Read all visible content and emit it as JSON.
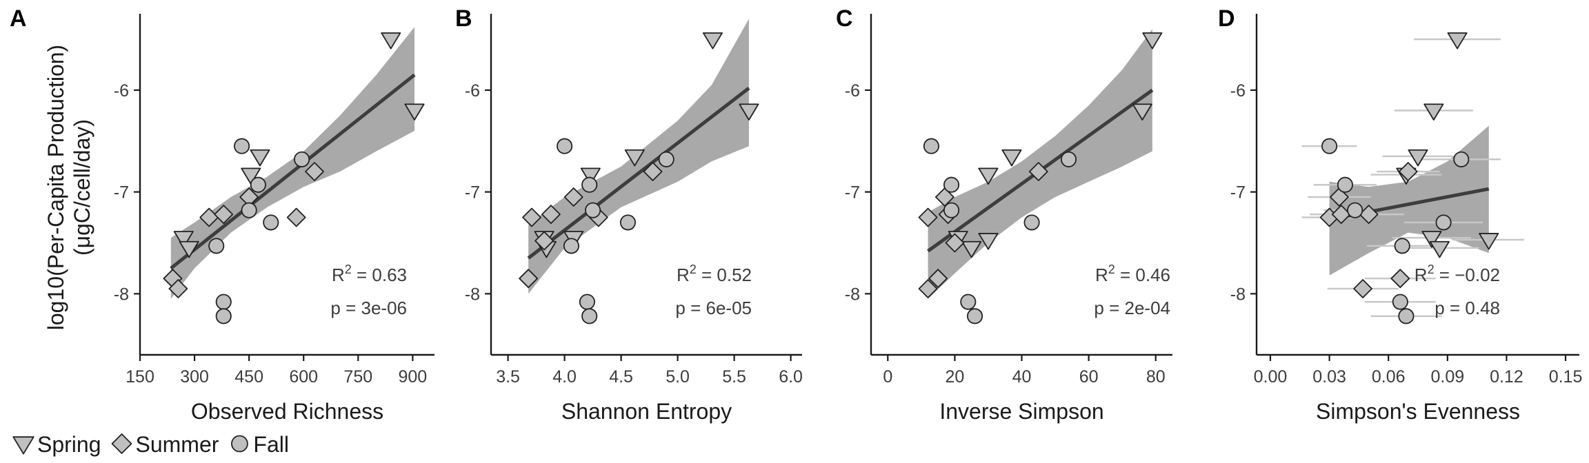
{
  "ylabel_line1": "log10(Per-Capita Production)",
  "ylabel_line2": "(μgC/cell/day)",
  "legend": [
    {
      "label": "Spring",
      "shape": "triangle-down"
    },
    {
      "label": "Summer",
      "shape": "diamond"
    },
    {
      "label": "Fall",
      "shape": "circle"
    }
  ],
  "colors": {
    "marker_fill": "#bfbfbf",
    "marker_stroke": "#222222",
    "line": "#3d3d3d",
    "ribbon": "#a9a9a9",
    "errorbar": "#c8c8c8"
  },
  "chart_data": [
    {
      "type": "scatter",
      "label": "A",
      "xlabel": "Observed Richness",
      "xlim": [
        150,
        960
      ],
      "ylim": [
        -8.6,
        -5.25
      ],
      "xticks": [
        150,
        300,
        450,
        600,
        750,
        900
      ],
      "xticklabels": [
        "150",
        "300",
        "450",
        "600",
        "750",
        "900"
      ],
      "yticks": [
        -8,
        -7,
        -6
      ],
      "yticklabels": [
        "-8",
        "-7",
        "-6"
      ],
      "stat_r2_value": "0.63",
      "stat_p": "p = 3e-06",
      "fit": {
        "x": [
          235,
          905
        ],
        "y": [
          -7.75,
          -5.85
        ]
      },
      "ribbon": {
        "x": [
          235,
          300,
          400,
          500,
          600,
          700,
          800,
          905
        ],
        "upper": [
          -7.45,
          -7.3,
          -7.05,
          -6.85,
          -6.6,
          -6.25,
          -5.85,
          -5.38
        ],
        "lower": [
          -8.05,
          -7.75,
          -7.4,
          -7.15,
          -6.95,
          -6.8,
          -6.6,
          -6.4
        ]
      },
      "points": [
        {
          "x": 840,
          "y": -5.5,
          "season": "Spring"
        },
        {
          "x": 905,
          "y": -6.2,
          "season": "Spring"
        },
        {
          "x": 480,
          "y": -6.65,
          "season": "Spring"
        },
        {
          "x": 455,
          "y": -6.83,
          "season": "Spring"
        },
        {
          "x": 270,
          "y": -7.45,
          "season": "Spring"
        },
        {
          "x": 285,
          "y": -7.55,
          "season": "Spring"
        },
        {
          "x": 630,
          "y": -6.8,
          "season": "Summer"
        },
        {
          "x": 450,
          "y": -7.05,
          "season": "Summer"
        },
        {
          "x": 340,
          "y": -7.25,
          "season": "Summer"
        },
        {
          "x": 380,
          "y": -7.22,
          "season": "Summer"
        },
        {
          "x": 580,
          "y": -7.25,
          "season": "Summer"
        },
        {
          "x": 240,
          "y": -7.85,
          "season": "Summer"
        },
        {
          "x": 255,
          "y": -7.95,
          "season": "Summer"
        },
        {
          "x": 430,
          "y": -6.55,
          "season": "Fall"
        },
        {
          "x": 595,
          "y": -6.68,
          "season": "Fall"
        },
        {
          "x": 475,
          "y": -6.93,
          "season": "Fall"
        },
        {
          "x": 450,
          "y": -7.18,
          "season": "Fall"
        },
        {
          "x": 510,
          "y": -7.3,
          "season": "Fall"
        },
        {
          "x": 360,
          "y": -7.53,
          "season": "Fall"
        },
        {
          "x": 380,
          "y": -8.08,
          "season": "Fall"
        },
        {
          "x": 380,
          "y": -8.22,
          "season": "Fall"
        }
      ]
    },
    {
      "type": "scatter",
      "label": "B",
      "xlabel": "Shannon Entropy",
      "xlim": [
        3.35,
        6.1
      ],
      "ylim": [
        -8.6,
        -5.25
      ],
      "xticks": [
        3.5,
        4.0,
        4.5,
        5.0,
        5.5,
        6.0
      ],
      "xticklabels": [
        "3.5",
        "4.0",
        "4.5",
        "5.0",
        "5.5",
        "6.0"
      ],
      "yticks": [
        -8,
        -7,
        -6
      ],
      "yticklabels": [
        "-8",
        "-7",
        "-6"
      ],
      "stat_r2_value": "0.52",
      "stat_p": "p = 6e-05",
      "fit": {
        "x": [
          3.68,
          5.63
        ],
        "y": [
          -7.65,
          -5.98
        ]
      },
      "ribbon": {
        "x": [
          3.68,
          4.0,
          4.5,
          5.0,
          5.3,
          5.63
        ],
        "upper": [
          -7.32,
          -7.05,
          -6.75,
          -6.3,
          -5.95,
          -5.3
        ],
        "lower": [
          -8.0,
          -7.55,
          -7.15,
          -6.9,
          -6.7,
          -6.55
        ]
      },
      "points": [
        {
          "x": 5.31,
          "y": -5.5,
          "season": "Spring"
        },
        {
          "x": 5.63,
          "y": -6.2,
          "season": "Spring"
        },
        {
          "x": 4.62,
          "y": -6.65,
          "season": "Spring"
        },
        {
          "x": 4.23,
          "y": -6.83,
          "season": "Spring"
        },
        {
          "x": 3.82,
          "y": -7.45,
          "season": "Spring"
        },
        {
          "x": 3.84,
          "y": -7.55,
          "season": "Spring"
        },
        {
          "x": 4.08,
          "y": -7.45,
          "season": "Spring"
        },
        {
          "x": 4.78,
          "y": -6.8,
          "season": "Summer"
        },
        {
          "x": 4.08,
          "y": -7.05,
          "season": "Summer"
        },
        {
          "x": 3.71,
          "y": -7.25,
          "season": "Summer"
        },
        {
          "x": 3.88,
          "y": -7.22,
          "season": "Summer"
        },
        {
          "x": 4.3,
          "y": -7.25,
          "season": "Summer"
        },
        {
          "x": 3.68,
          "y": -7.85,
          "season": "Summer"
        },
        {
          "x": 3.82,
          "y": -7.48,
          "season": "Summer"
        },
        {
          "x": 4.0,
          "y": -6.55,
          "season": "Fall"
        },
        {
          "x": 4.9,
          "y": -6.68,
          "season": "Fall"
        },
        {
          "x": 4.22,
          "y": -6.93,
          "season": "Fall"
        },
        {
          "x": 4.25,
          "y": -7.18,
          "season": "Fall"
        },
        {
          "x": 4.56,
          "y": -7.3,
          "season": "Fall"
        },
        {
          "x": 4.06,
          "y": -7.53,
          "season": "Fall"
        },
        {
          "x": 4.2,
          "y": -8.08,
          "season": "Fall"
        },
        {
          "x": 4.22,
          "y": -8.22,
          "season": "Fall"
        }
      ]
    },
    {
      "type": "scatter",
      "label": "C",
      "xlabel": "Inverse Simpson",
      "xlim": [
        -5,
        85
      ],
      "ylim": [
        -8.6,
        -5.25
      ],
      "xticks": [
        0,
        20,
        40,
        60,
        80
      ],
      "xticklabels": [
        "0",
        "20",
        "40",
        "60",
        "80"
      ],
      "yticks": [
        -8,
        -7,
        -6
      ],
      "yticklabels": [
        "-8",
        "-7",
        "-6"
      ],
      "stat_r2_value": "0.46",
      "stat_p": "p = 2e-04",
      "fit": {
        "x": [
          12,
          79
        ],
        "y": [
          -7.58,
          -6.0
        ]
      },
      "ribbon": {
        "x": [
          12,
          20,
          30,
          40,
          50,
          60,
          70,
          79
        ],
        "upper": [
          -7.2,
          -7.05,
          -6.9,
          -6.7,
          -6.45,
          -6.15,
          -5.8,
          -5.4
        ],
        "lower": [
          -8.05,
          -7.8,
          -7.5,
          -7.25,
          -7.05,
          -6.9,
          -6.75,
          -6.6
        ]
      },
      "points": [
        {
          "x": 79,
          "y": -5.5,
          "season": "Spring"
        },
        {
          "x": 76,
          "y": -6.2,
          "season": "Spring"
        },
        {
          "x": 37,
          "y": -6.65,
          "season": "Spring"
        },
        {
          "x": 30,
          "y": -6.83,
          "season": "Spring"
        },
        {
          "x": 30,
          "y": -7.47,
          "season": "Spring"
        },
        {
          "x": 21,
          "y": -7.45,
          "season": "Spring"
        },
        {
          "x": 25,
          "y": -7.55,
          "season": "Spring"
        },
        {
          "x": 45,
          "y": -6.8,
          "season": "Summer"
        },
        {
          "x": 17,
          "y": -7.05,
          "season": "Summer"
        },
        {
          "x": 12,
          "y": -7.25,
          "season": "Summer"
        },
        {
          "x": 18,
          "y": -7.22,
          "season": "Summer"
        },
        {
          "x": 20,
          "y": -7.5,
          "season": "Summer"
        },
        {
          "x": 15,
          "y": -7.85,
          "season": "Summer"
        },
        {
          "x": 12,
          "y": -7.95,
          "season": "Summer"
        },
        {
          "x": 13,
          "y": -6.55,
          "season": "Fall"
        },
        {
          "x": 54,
          "y": -6.68,
          "season": "Fall"
        },
        {
          "x": 19,
          "y": -6.93,
          "season": "Fall"
        },
        {
          "x": 19,
          "y": -7.18,
          "season": "Fall"
        },
        {
          "x": 43,
          "y": -7.3,
          "season": "Fall"
        },
        {
          "x": 24,
          "y": -8.08,
          "season": "Fall"
        },
        {
          "x": 26,
          "y": -8.22,
          "season": "Fall"
        }
      ]
    },
    {
      "type": "scatter",
      "label": "D",
      "xlabel": "Simpson's Evenness",
      "xlim": [
        -0.007,
        0.157
      ],
      "ylim": [
        -8.6,
        -5.25
      ],
      "xticks": [
        0.0,
        0.03,
        0.06,
        0.09,
        0.12,
        0.15
      ],
      "xticklabels": [
        "0.00",
        "0.03",
        "0.06",
        "0.09",
        "0.12",
        "0.15"
      ],
      "yticks": [
        -8,
        -7,
        -6
      ],
      "yticklabels": [
        "-8",
        "-7",
        "-6"
      ],
      "stat_r2_value": "−0.02",
      "stat_p": "p = 0.48",
      "fit": {
        "x": [
          0.03,
          0.111
        ],
        "y": [
          -7.27,
          -6.97
        ]
      },
      "ribbon": {
        "x": [
          0.03,
          0.05,
          0.07,
          0.09,
          0.111
        ],
        "upper": [
          -6.9,
          -6.95,
          -6.9,
          -6.7,
          -6.35
        ],
        "lower": [
          -7.82,
          -7.6,
          -7.4,
          -7.45,
          -7.6
        ]
      },
      "points": [
        {
          "x": 0.095,
          "y": -5.5,
          "season": "Spring",
          "xerr": 0.022
        },
        {
          "x": 0.083,
          "y": -6.2,
          "season": "Spring",
          "xerr": 0.02
        },
        {
          "x": 0.075,
          "y": -6.65,
          "season": "Spring",
          "xerr": 0.018
        },
        {
          "x": 0.069,
          "y": -6.83,
          "season": "Spring",
          "xerr": 0.018
        },
        {
          "x": 0.082,
          "y": -7.45,
          "season": "Spring",
          "xerr": 0.02
        },
        {
          "x": 0.111,
          "y": -7.47,
          "season": "Spring",
          "xerr": 0.018
        },
        {
          "x": 0.086,
          "y": -7.55,
          "season": "Spring",
          "xerr": 0.02
        },
        {
          "x": 0.07,
          "y": -6.8,
          "season": "Summer",
          "xerr": 0.016
        },
        {
          "x": 0.035,
          "y": -7.05,
          "season": "Summer",
          "xerr": 0.016
        },
        {
          "x": 0.03,
          "y": -7.25,
          "season": "Summer",
          "xerr": 0.014
        },
        {
          "x": 0.036,
          "y": -7.22,
          "season": "Summer",
          "xerr": 0.016
        },
        {
          "x": 0.05,
          "y": -7.22,
          "season": "Summer",
          "xerr": 0.018
        },
        {
          "x": 0.066,
          "y": -7.85,
          "season": "Summer",
          "xerr": 0.018
        },
        {
          "x": 0.047,
          "y": -7.95,
          "season": "Summer",
          "xerr": 0.018
        },
        {
          "x": 0.03,
          "y": -6.55,
          "season": "Fall",
          "xerr": 0.014
        },
        {
          "x": 0.097,
          "y": -6.68,
          "season": "Fall",
          "xerr": 0.02
        },
        {
          "x": 0.038,
          "y": -6.93,
          "season": "Fall",
          "xerr": 0.016
        },
        {
          "x": 0.043,
          "y": -7.18,
          "season": "Fall",
          "xerr": 0.016
        },
        {
          "x": 0.088,
          "y": -7.3,
          "season": "Fall",
          "xerr": 0.02
        },
        {
          "x": 0.067,
          "y": -7.53,
          "season": "Fall",
          "xerr": 0.018
        },
        {
          "x": 0.066,
          "y": -8.08,
          "season": "Fall",
          "xerr": 0.018
        },
        {
          "x": 0.069,
          "y": -8.22,
          "season": "Fall",
          "xerr": 0.018
        }
      ]
    }
  ]
}
